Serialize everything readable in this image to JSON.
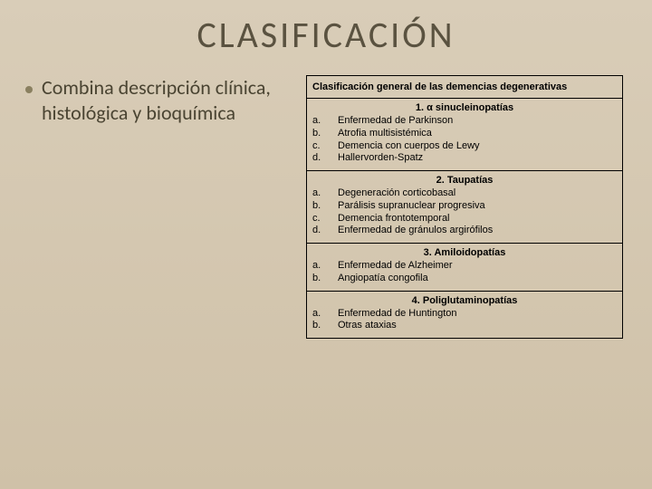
{
  "title": "CLASIFICACIÓN",
  "bullet": "Combina descripción clínica, histológica y bioquímica",
  "table": {
    "header": "Clasificación general de las demencias degenerativas",
    "sections": [
      {
        "title": "1.   α sinucleinopatías",
        "items": [
          {
            "m": "a.",
            "t": "Enfermedad de Parkinson"
          },
          {
            "m": "b.",
            "t": "Atrofia multisistémica"
          },
          {
            "m": "c.",
            "t": "Demencia con cuerpos de Lewy"
          },
          {
            "m": "d.",
            "t": "Hallervorden-Spatz"
          }
        ]
      },
      {
        "title": "2. Taupatías",
        "items": [
          {
            "m": "a.",
            "t": "Degeneración corticobasal"
          },
          {
            "m": "b.",
            "t": "Parálisis supranuclear progresiva"
          },
          {
            "m": "c.",
            "t": "Demencia frontotemporal"
          },
          {
            "m": "d.",
            "t": "Enfermedad de gránulos argirófilos"
          }
        ]
      },
      {
        "title": "3. Amiloidopatías",
        "items": [
          {
            "m": "a.",
            "t": "Enfermedad de Alzheimer"
          },
          {
            "m": "b.",
            "t": "Angiopatía congofila"
          }
        ]
      },
      {
        "title": "4. Poliglutaminopatías",
        "items": [
          {
            "m": "a.",
            "t": "Enfermedad de Huntington"
          },
          {
            "m": "b.",
            "t": "Otras ataxias"
          }
        ]
      }
    ]
  }
}
